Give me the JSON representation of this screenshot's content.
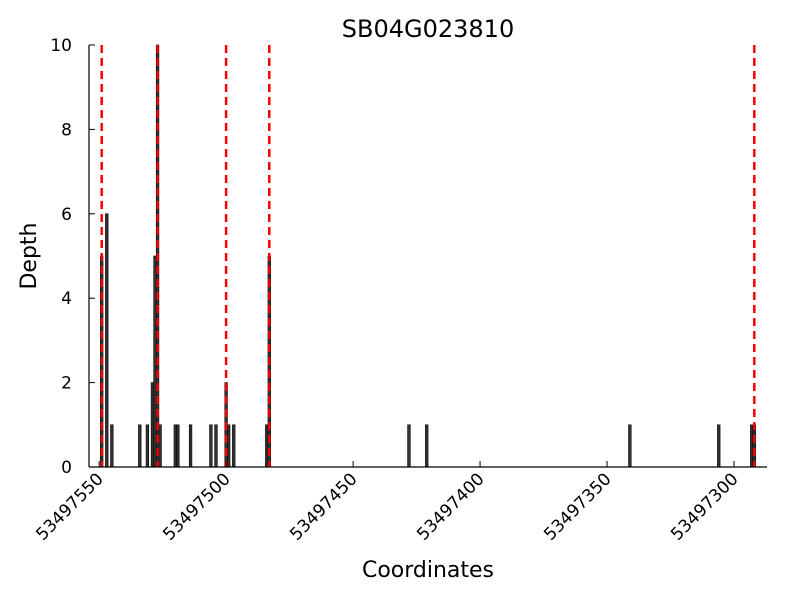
{
  "chart_data": {
    "type": "bar",
    "title": "SB04G023810",
    "xlabel": "Coordinates",
    "ylabel": "Depth",
    "x_reversed": true,
    "xlim": [
      53497554,
      53497287
    ],
    "ylim": [
      0,
      10
    ],
    "x_ticks": [
      53497550,
      53497500,
      53497450,
      53497400,
      53497350,
      53497300
    ],
    "y_ticks": [
      0,
      2,
      4,
      6,
      8,
      10
    ],
    "bar_color": "#333333",
    "exon_line_color": "#ff0000",
    "bars": [
      {
        "x": 53497549,
        "depth": 5
      },
      {
        "x": 53497547,
        "depth": 6
      },
      {
        "x": 53497545,
        "depth": 1
      },
      {
        "x": 53497534,
        "depth": 1
      },
      {
        "x": 53497531,
        "depth": 1
      },
      {
        "x": 53497529,
        "depth": 2
      },
      {
        "x": 53497528,
        "depth": 5
      },
      {
        "x": 53497527,
        "depth": 10
      },
      {
        "x": 53497526,
        "depth": 1
      },
      {
        "x": 53497520,
        "depth": 1
      },
      {
        "x": 53497519,
        "depth": 1
      },
      {
        "x": 53497514,
        "depth": 1
      },
      {
        "x": 53497506,
        "depth": 1
      },
      {
        "x": 53497504,
        "depth": 1
      },
      {
        "x": 53497500,
        "depth": 2
      },
      {
        "x": 53497499,
        "depth": 1
      },
      {
        "x": 53497497,
        "depth": 1
      },
      {
        "x": 53497484,
        "depth": 1
      },
      {
        "x": 53497483,
        "depth": 5
      },
      {
        "x": 53497428,
        "depth": 1
      },
      {
        "x": 53497421,
        "depth": 1
      },
      {
        "x": 53497341,
        "depth": 1
      },
      {
        "x": 53497306,
        "depth": 1
      },
      {
        "x": 53497293,
        "depth": 1
      },
      {
        "x": 53497292,
        "depth": 1
      }
    ],
    "exon_boundaries": [
      53497549,
      53497527,
      53497500,
      53497483,
      53497292
    ],
    "grid": false,
    "legend": "none"
  }
}
